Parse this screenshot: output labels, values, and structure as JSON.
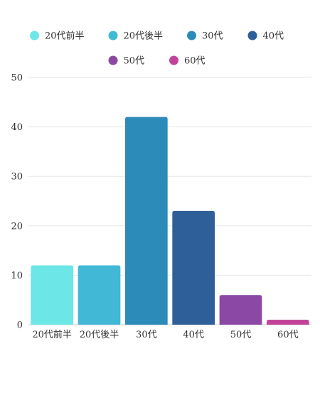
{
  "chart_data": {
    "type": "bar",
    "title": "",
    "xlabel": "",
    "ylabel": "",
    "categories": [
      "20代前半",
      "20代後半",
      "30代",
      "40代",
      "50代",
      "60代"
    ],
    "values": [
      12,
      12,
      42,
      23,
      6,
      1
    ],
    "colors": [
      "#6de6e8",
      "#41b8d5",
      "#2d8bba",
      "#2f5f98",
      "#8b48a4",
      "#c2449a"
    ],
    "ylim": [
      0,
      50
    ],
    "yticks": [
      0,
      10,
      20,
      30,
      40,
      50
    ],
    "grid": true,
    "legend": {
      "placement": "top",
      "entries": [
        "20代前半",
        "20代後半",
        "30代",
        "40代",
        "50代",
        "60代"
      ]
    }
  }
}
